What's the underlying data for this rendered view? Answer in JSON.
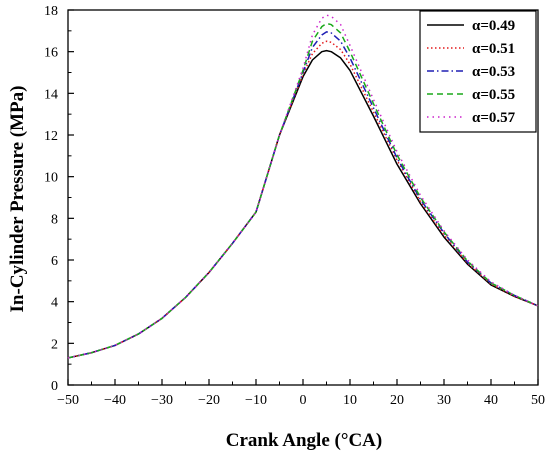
{
  "chart_data": {
    "type": "line",
    "xlabel": "Crank Angle (°CA)",
    "ylabel": "In-Cylinder Pressure (MPa)",
    "xlim": [
      -50,
      50
    ],
    "ylim": [
      0,
      18
    ],
    "x_ticks": [
      "−50",
      "−40",
      "−30",
      "−20",
      "−10",
      "0",
      "10",
      "20",
      "30",
      "40",
      "50"
    ],
    "y_ticks": [
      "0",
      "2",
      "4",
      "6",
      "8",
      "10",
      "12",
      "14",
      "16",
      "18"
    ],
    "grid": false,
    "legend_position": "top-right",
    "x": [
      -50,
      -45,
      -40,
      -35,
      -30,
      -25,
      -20,
      -15,
      -10,
      -5,
      0,
      2,
      4,
      5,
      6,
      8,
      10,
      15,
      20,
      25,
      30,
      35,
      40,
      45,
      50
    ],
    "series": [
      {
        "name": "α=0.49",
        "color": "#000000",
        "dash": "solid",
        "values": [
          1.3,
          1.55,
          1.9,
          2.45,
          3.2,
          4.2,
          5.4,
          6.8,
          8.3,
          12.0,
          14.8,
          15.6,
          16.0,
          16.05,
          16.0,
          15.7,
          15.1,
          12.9,
          10.6,
          8.7,
          7.1,
          5.8,
          4.8,
          4.25,
          3.8
        ]
      },
      {
        "name": "α=0.51",
        "color": "#e31a1c",
        "dash": "dotted",
        "values": [
          1.3,
          1.55,
          1.9,
          2.45,
          3.2,
          4.2,
          5.4,
          6.8,
          8.3,
          12.0,
          14.9,
          15.9,
          16.4,
          16.5,
          16.45,
          16.1,
          15.4,
          13.1,
          10.8,
          8.8,
          7.2,
          5.85,
          4.85,
          4.25,
          3.8
        ]
      },
      {
        "name": "α=0.53",
        "color": "#1f1fb4",
        "dash": "dashdot",
        "values": [
          1.3,
          1.55,
          1.9,
          2.45,
          3.2,
          4.2,
          5.4,
          6.8,
          8.3,
          12.0,
          15.0,
          16.2,
          16.8,
          16.95,
          16.9,
          16.5,
          15.7,
          13.3,
          10.9,
          8.9,
          7.3,
          5.9,
          4.9,
          4.3,
          3.8
        ]
      },
      {
        "name": "α=0.55",
        "color": "#1aa81a",
        "dash": "dashed",
        "values": [
          1.3,
          1.55,
          1.9,
          2.45,
          3.2,
          4.2,
          5.4,
          6.8,
          8.3,
          12.0,
          15.1,
          16.5,
          17.2,
          17.35,
          17.3,
          16.9,
          16.0,
          13.5,
          11.05,
          9.0,
          7.35,
          5.95,
          4.9,
          4.3,
          3.8
        ]
      },
      {
        "name": "α=0.57",
        "color": "#cc22cc",
        "dash": "densedot",
        "values": [
          1.3,
          1.55,
          1.9,
          2.45,
          3.2,
          4.2,
          5.4,
          6.8,
          8.3,
          12.0,
          15.2,
          16.8,
          17.6,
          17.75,
          17.7,
          17.3,
          16.3,
          13.7,
          11.2,
          9.1,
          7.4,
          6.0,
          4.95,
          4.3,
          3.8
        ]
      }
    ]
  }
}
